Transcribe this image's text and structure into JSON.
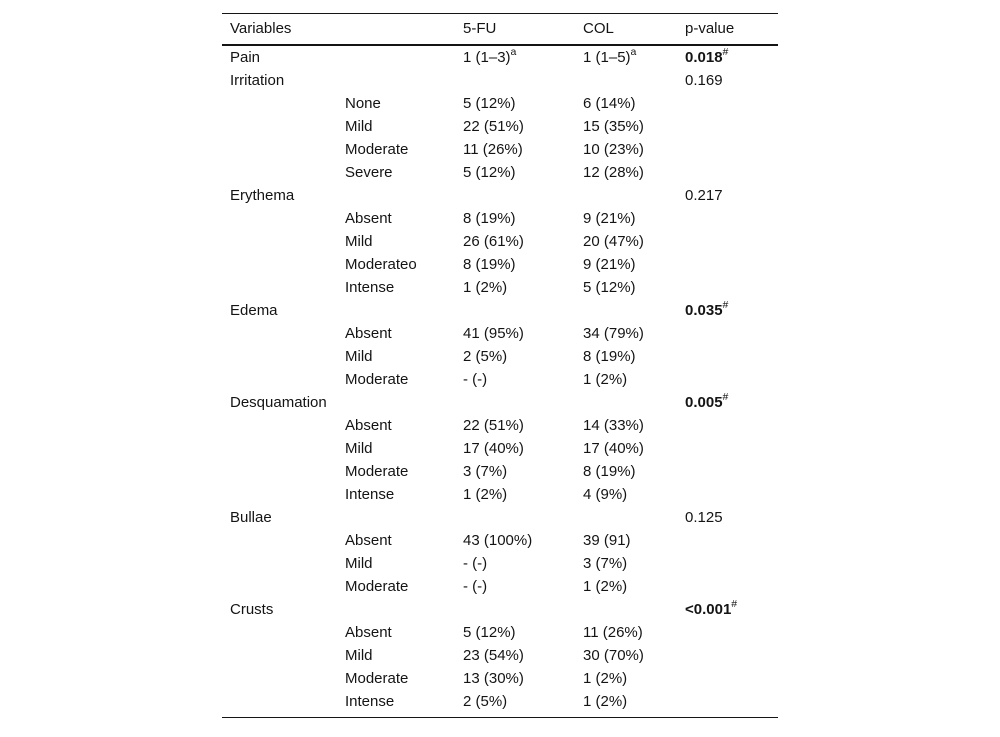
{
  "table": {
    "header": {
      "variables": "Variables",
      "fu": "5-FU",
      "col": "COL",
      "p": "p-value"
    },
    "rows": [
      {
        "variable": "Pain",
        "sub": "",
        "fu": "1 (1–3)",
        "fu_sup": "a",
        "col": "1 (1–5)",
        "col_sup": "a",
        "p": "0.018",
        "p_sup": "#",
        "p_bold": true
      },
      {
        "variable": "Irritation",
        "sub": "",
        "fu": "",
        "col": "",
        "p": "0.169",
        "p_bold": false
      },
      {
        "variable": "",
        "sub": "None",
        "fu": "5 (12%)",
        "col": "6 (14%)",
        "p": ""
      },
      {
        "variable": "",
        "sub": "Mild",
        "fu": "22 (51%)",
        "col": "15 (35%)",
        "p": ""
      },
      {
        "variable": "",
        "sub": "Moderate",
        "fu": "11 (26%)",
        "col": "10 (23%)",
        "p": ""
      },
      {
        "variable": "",
        "sub": "Severe",
        "fu": "5 (12%)",
        "col": "12 (28%)",
        "p": ""
      },
      {
        "variable": "Erythema",
        "sub": "",
        "fu": "",
        "col": "",
        "p": "0.217",
        "p_bold": false
      },
      {
        "variable": "",
        "sub": "Absent",
        "fu": "8 (19%)",
        "col": "9 (21%)",
        "p": ""
      },
      {
        "variable": "",
        "sub": "Mild",
        "fu": "26 (61%)",
        "col": "20 (47%)",
        "p": ""
      },
      {
        "variable": "",
        "sub": "Moderateo",
        "fu": "8 (19%)",
        "col": "9 (21%)",
        "p": ""
      },
      {
        "variable": "",
        "sub": "Intense",
        "fu": "1 (2%)",
        "col": "5 (12%)",
        "p": ""
      },
      {
        "variable": "Edema",
        "sub": "",
        "fu": "",
        "col": "",
        "p": "0.035",
        "p_sup": "#",
        "p_bold": true
      },
      {
        "variable": "",
        "sub": "Absent",
        "fu": "41 (95%)",
        "col": "34 (79%)",
        "p": ""
      },
      {
        "variable": "",
        "sub": "Mild",
        "fu": "2 (5%)",
        "col": "8 (19%)",
        "p": ""
      },
      {
        "variable": "",
        "sub": "Moderate",
        "fu": "- (-)",
        "col": "1 (2%)",
        "p": ""
      },
      {
        "variable": "Desquamation",
        "sub": "",
        "fu": "",
        "col": "",
        "p": "0.005",
        "p_sup": "#",
        "p_bold": true
      },
      {
        "variable": "",
        "sub": "Absent",
        "fu": "22 (51%)",
        "col": "14 (33%)",
        "p": ""
      },
      {
        "variable": "",
        "sub": "Mild",
        "fu": "17 (40%)",
        "col": "17 (40%)",
        "p": ""
      },
      {
        "variable": "",
        "sub": "Moderate",
        "fu": "3 (7%)",
        "col": "8 (19%)",
        "p": ""
      },
      {
        "variable": "",
        "sub": "Intense",
        "fu": "1 (2%)",
        "col": "4 (9%)",
        "p": ""
      },
      {
        "variable": "Bullae",
        "sub": "",
        "fu": "",
        "col": "",
        "p": "0.125",
        "p_bold": false
      },
      {
        "variable": "",
        "sub": "Absent",
        "fu": "43 (100%)",
        "col": "39 (91)",
        "p": ""
      },
      {
        "variable": "",
        "sub": "Mild",
        "fu": "- (-)",
        "col": "3 (7%)",
        "p": ""
      },
      {
        "variable": "",
        "sub": "Moderate",
        "fu": "- (-)",
        "col": "1 (2%)",
        "p": ""
      },
      {
        "variable": "Crusts",
        "sub": "",
        "fu": "",
        "col": "",
        "p": "<0.001",
        "p_sup": "#",
        "p_bold": true
      },
      {
        "variable": "",
        "sub": "Absent",
        "fu": "5 (12%)",
        "col": "11 (26%)",
        "p": ""
      },
      {
        "variable": "",
        "sub": "Mild",
        "fu": "23 (54%)",
        "col": "30 (70%)",
        "p": ""
      },
      {
        "variable": "",
        "sub": "Moderate",
        "fu": "13 (30%)",
        "col": "1 (2%)",
        "p": ""
      },
      {
        "variable": "",
        "sub": "Intense",
        "fu": "2 (5%)",
        "col": "1 (2%)",
        "p": ""
      }
    ]
  }
}
